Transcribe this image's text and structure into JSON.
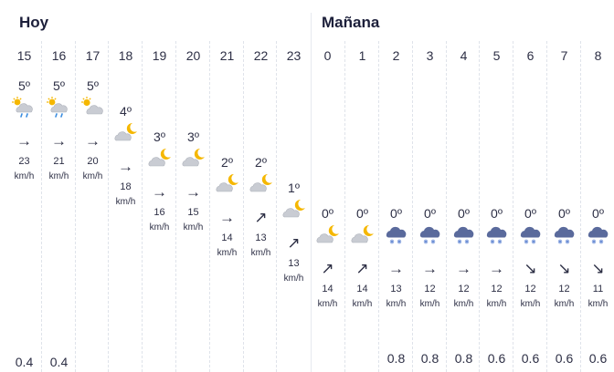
{
  "days": {
    "today": "Hoy",
    "tomorrow": "Mañana"
  },
  "wind_unit": "km/h",
  "hours": [
    {
      "hour": "15",
      "temp": "5º",
      "icon": "sun-cloud-rain-icon",
      "wind": "23",
      "dir": "→",
      "precip": "0.4"
    },
    {
      "hour": "16",
      "temp": "5º",
      "icon": "sun-cloud-rain-icon",
      "wind": "21",
      "dir": "→",
      "precip": "0.4"
    },
    {
      "hour": "17",
      "temp": "5º",
      "icon": "sun-cloud-icon",
      "wind": "20",
      "dir": "→",
      "precip": ""
    },
    {
      "hour": "18",
      "temp": "4º",
      "icon": "moon-cloud-icon",
      "wind": "18",
      "dir": "→",
      "precip": ""
    },
    {
      "hour": "19",
      "temp": "3º",
      "icon": "moon-cloud-icon",
      "wind": "16",
      "dir": "→",
      "precip": ""
    },
    {
      "hour": "20",
      "temp": "3º",
      "icon": "moon-cloud-icon",
      "wind": "15",
      "dir": "→",
      "precip": ""
    },
    {
      "hour": "21",
      "temp": "2º",
      "icon": "moon-cloud-icon",
      "wind": "14",
      "dir": "→",
      "precip": ""
    },
    {
      "hour": "22",
      "temp": "2º",
      "icon": "moon-cloud-icon",
      "wind": "13",
      "dir": "↗",
      "precip": ""
    },
    {
      "hour": "23",
      "temp": "1º",
      "icon": "moon-cloud-icon",
      "wind": "13",
      "dir": "↗",
      "precip": ""
    },
    {
      "hour": "0",
      "temp": "0º",
      "icon": "moon-cloud-icon",
      "wind": "14",
      "dir": "↗",
      "precip": ""
    },
    {
      "hour": "1",
      "temp": "0º",
      "icon": "moon-cloud-icon",
      "wind": "14",
      "dir": "↗",
      "precip": ""
    },
    {
      "hour": "2",
      "temp": "0º",
      "icon": "snow-cloud-icon",
      "wind": "13",
      "dir": "→",
      "precip": "0.8"
    },
    {
      "hour": "3",
      "temp": "0º",
      "icon": "snow-cloud-icon",
      "wind": "12",
      "dir": "→",
      "precip": "0.8"
    },
    {
      "hour": "4",
      "temp": "0º",
      "icon": "snow-cloud-icon",
      "wind": "12",
      "dir": "→",
      "precip": "0.8"
    },
    {
      "hour": "5",
      "temp": "0º",
      "icon": "snow-cloud-icon",
      "wind": "12",
      "dir": "→",
      "precip": "0.6"
    },
    {
      "hour": "6",
      "temp": "0º",
      "icon": "snow-cloud-icon",
      "wind": "12",
      "dir": "↘",
      "precip": "0.6"
    },
    {
      "hour": "7",
      "temp": "0º",
      "icon": "snow-cloud-icon",
      "wind": "12",
      "dir": "↘",
      "precip": "0.6"
    },
    {
      "hour": "8",
      "temp": "0º",
      "icon": "snow-cloud-icon",
      "wind": "11",
      "dir": "↘",
      "precip": "0.6"
    }
  ]
}
